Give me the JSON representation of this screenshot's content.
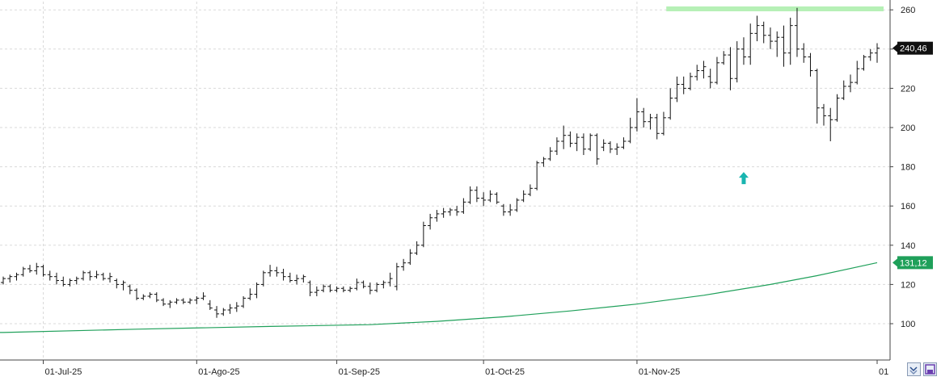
{
  "chart_data": {
    "type": "ohlc",
    "y_axis": {
      "side": "right",
      "range": [
        90,
        265
      ],
      "ticks": [
        100,
        120,
        140,
        160,
        180,
        200,
        220,
        240,
        260
      ]
    },
    "x_axis": {
      "labels": [
        "01-Jul-25",
        "01-Ago-25",
        "01-Sep-25",
        "01-Oct-25",
        "01-Nov-25",
        "01"
      ]
    },
    "grid": true,
    "last_price": {
      "label": "240,46",
      "value": 240.46,
      "color": "#111111"
    },
    "moving_average_value": {
      "label": "131,12",
      "value": 131.12,
      "color": "#1fa05a"
    },
    "resistance_band": {
      "value": 260.5,
      "from_date": "2025-11-10",
      "color": "#b6f0b6"
    },
    "signal_arrow": {
      "direction": "up",
      "date": "2025-11-25",
      "value": 174,
      "color": "#19b5b0"
    },
    "series": [
      {
        "type": "ohlc",
        "color": "#111111",
        "points": [
          [
            "2025-06-23",
            121,
            124,
            120,
            123
          ],
          [
            "2025-06-24",
            123,
            125,
            121,
            124
          ],
          [
            "2025-06-25",
            124,
            126,
            122,
            125
          ],
          [
            "2025-06-26",
            125,
            129,
            124,
            128
          ],
          [
            "2025-06-27",
            128,
            130,
            126,
            127
          ],
          [
            "2025-06-30",
            127,
            131,
            125,
            129
          ],
          [
            "2025-07-01",
            129,
            130,
            124,
            125
          ],
          [
            "2025-07-02",
            125,
            127,
            122,
            124
          ],
          [
            "2025-07-03",
            124,
            126,
            120,
            122
          ],
          [
            "2025-07-04",
            122,
            124,
            119,
            120
          ],
          [
            "2025-07-07",
            120,
            123,
            119,
            122
          ],
          [
            "2025-07-08",
            122,
            124,
            120,
            123
          ],
          [
            "2025-07-09",
            123,
            127,
            122,
            126
          ],
          [
            "2025-07-10",
            126,
            127,
            122,
            124
          ],
          [
            "2025-07-11",
            124,
            127,
            123,
            125
          ],
          [
            "2025-07-14",
            125,
            126,
            122,
            123
          ],
          [
            "2025-07-15",
            123,
            126,
            121,
            124
          ],
          [
            "2025-07-16",
            122,
            123,
            118,
            120
          ],
          [
            "2025-07-17",
            120,
            122,
            117,
            121
          ],
          [
            "2025-07-18",
            119,
            120,
            115,
            117
          ],
          [
            "2025-07-21",
            117,
            118,
            112,
            113
          ],
          [
            "2025-07-22",
            113,
            115,
            112,
            114
          ],
          [
            "2025-07-23",
            114,
            116,
            113,
            115
          ],
          [
            "2025-07-24",
            115,
            116,
            111,
            112
          ],
          [
            "2025-07-25",
            112,
            113,
            109,
            110
          ],
          [
            "2025-07-28",
            110,
            112,
            108,
            111
          ],
          [
            "2025-07-29",
            111,
            113,
            110,
            112
          ],
          [
            "2025-07-30",
            112,
            113,
            110,
            111
          ],
          [
            "2025-07-31",
            111,
            113,
            110,
            112
          ],
          [
            "2025-08-01",
            112,
            114,
            110,
            113
          ],
          [
            "2025-08-04",
            113,
            116,
            112,
            114
          ],
          [
            "2025-08-05",
            110,
            112,
            107,
            108
          ],
          [
            "2025-08-06",
            107,
            109,
            103,
            105
          ],
          [
            "2025-08-07",
            105,
            108,
            104,
            107
          ],
          [
            "2025-08-08",
            107,
            110,
            105,
            108
          ],
          [
            "2025-08-11",
            108,
            111,
            106,
            109
          ],
          [
            "2025-08-12",
            109,
            114,
            108,
            113
          ],
          [
            "2025-08-13",
            113,
            118,
            112,
            115
          ],
          [
            "2025-08-14",
            115,
            121,
            113,
            120
          ],
          [
            "2025-08-15",
            120,
            127,
            119,
            126
          ],
          [
            "2025-08-18",
            126,
            130,
            124,
            127
          ],
          [
            "2025-08-19",
            127,
            129,
            124,
            126
          ],
          [
            "2025-08-20",
            126,
            128,
            122,
            124
          ],
          [
            "2025-08-21",
            124,
            126,
            121,
            122
          ],
          [
            "2025-08-22",
            122,
            125,
            120,
            123
          ],
          [
            "2025-08-25",
            123,
            125,
            121,
            124
          ],
          [
            "2025-08-26",
            121,
            122,
            114,
            116
          ],
          [
            "2025-08-27",
            116,
            119,
            114,
            117
          ],
          [
            "2025-08-28",
            117,
            120,
            116,
            119
          ],
          [
            "2025-08-29",
            119,
            120,
            116,
            117
          ],
          [
            "2025-09-01",
            117,
            119,
            116,
            118
          ],
          [
            "2025-09-02",
            118,
            119,
            116,
            117
          ],
          [
            "2025-09-03",
            117,
            119,
            116,
            118
          ],
          [
            "2025-09-04",
            118,
            123,
            117,
            121
          ],
          [
            "2025-09-05",
            121,
            122,
            118,
            119
          ],
          [
            "2025-09-08",
            119,
            121,
            115,
            117
          ],
          [
            "2025-09-09",
            117,
            121,
            116,
            120
          ],
          [
            "2025-09-10",
            120,
            122,
            118,
            121
          ],
          [
            "2025-09-11",
            121,
            126,
            119,
            123
          ],
          [
            "2025-09-12",
            119,
            131,
            117,
            129
          ],
          [
            "2025-09-15",
            129,
            133,
            127,
            131
          ],
          [
            "2025-09-16",
            131,
            138,
            130,
            136
          ],
          [
            "2025-09-17",
            136,
            142,
            135,
            140
          ],
          [
            "2025-09-18",
            140,
            152,
            139,
            150
          ],
          [
            "2025-09-19",
            150,
            156,
            148,
            154
          ],
          [
            "2025-09-22",
            154,
            158,
            152,
            156
          ],
          [
            "2025-09-23",
            156,
            159,
            154,
            157
          ],
          [
            "2025-09-24",
            157,
            159,
            155,
            158
          ],
          [
            "2025-09-25",
            158,
            160,
            155,
            157
          ],
          [
            "2025-09-26",
            157,
            164,
            156,
            162
          ],
          [
            "2025-09-29",
            162,
            170,
            161,
            168
          ],
          [
            "2025-09-30",
            168,
            170,
            162,
            164
          ],
          [
            "2025-10-01",
            164,
            167,
            160,
            163
          ],
          [
            "2025-10-02",
            163,
            168,
            162,
            166
          ],
          [
            "2025-10-03",
            166,
            167,
            161,
            162
          ],
          [
            "2025-10-06",
            160,
            161,
            155,
            157
          ],
          [
            "2025-10-07",
            157,
            161,
            155,
            158
          ],
          [
            "2025-10-08",
            158,
            164,
            157,
            163
          ],
          [
            "2025-10-09",
            163,
            168,
            162,
            166
          ],
          [
            "2025-10-10",
            166,
            171,
            165,
            169
          ],
          [
            "2025-10-13",
            169,
            183,
            168,
            182
          ],
          [
            "2025-10-14",
            182,
            185,
            180,
            184
          ],
          [
            "2025-10-15",
            184,
            190,
            183,
            188
          ],
          [
            "2025-10-16",
            188,
            195,
            186,
            193
          ],
          [
            "2025-10-17",
            193,
            201,
            189,
            196
          ],
          [
            "2025-10-20",
            196,
            198,
            190,
            192
          ],
          [
            "2025-10-21",
            192,
            197,
            188,
            195
          ],
          [
            "2025-10-22",
            195,
            197,
            186,
            189
          ],
          [
            "2025-10-23",
            189,
            197,
            188,
            196
          ],
          [
            "2025-10-24",
            196,
            197,
            181,
            184
          ],
          [
            "2025-10-27",
            190,
            194,
            188,
            192
          ],
          [
            "2025-10-28",
            192,
            193,
            187,
            189
          ],
          [
            "2025-10-29",
            189,
            192,
            186,
            190
          ],
          [
            "2025-10-30",
            190,
            195,
            189,
            193
          ],
          [
            "2025-10-31",
            193,
            205,
            192,
            200
          ],
          [
            "2025-11-03",
            200,
            215,
            198,
            208
          ],
          [
            "2025-11-04",
            208,
            210,
            200,
            203
          ],
          [
            "2025-11-05",
            203,
            207,
            199,
            205
          ],
          [
            "2025-11-06",
            205,
            207,
            194,
            197
          ],
          [
            "2025-11-07",
            197,
            208,
            196,
            205
          ],
          [
            "2025-11-10",
            205,
            220,
            204,
            215
          ],
          [
            "2025-11-11",
            215,
            226,
            213,
            222
          ],
          [
            "2025-11-12",
            222,
            226,
            217,
            220
          ],
          [
            "2025-11-13",
            220,
            228,
            219,
            226
          ],
          [
            "2025-11-14",
            226,
            232,
            224,
            229
          ],
          [
            "2025-11-17",
            229,
            234,
            225,
            231
          ],
          [
            "2025-11-18",
            226,
            230,
            220,
            223
          ],
          [
            "2025-11-19",
            223,
            236,
            222,
            233
          ],
          [
            "2025-11-20",
            233,
            239,
            232,
            237
          ],
          [
            "2025-11-21",
            237,
            241,
            219,
            225
          ],
          [
            "2025-11-24",
            225,
            244,
            223,
            240
          ],
          [
            "2025-11-25",
            240,
            246,
            232,
            236
          ],
          [
            "2025-11-26",
            236,
            253,
            232,
            248
          ],
          [
            "2025-11-27",
            248,
            257,
            244,
            252
          ],
          [
            "2025-11-28",
            252,
            254,
            243,
            247
          ],
          [
            "2025-12-01",
            247,
            251,
            240,
            244
          ],
          [
            "2025-12-02",
            244,
            249,
            236,
            246
          ],
          [
            "2025-12-03",
            246,
            252,
            231,
            238
          ],
          [
            "2025-12-04",
            238,
            256,
            232,
            252
          ],
          [
            "2025-12-05",
            252,
            261,
            236,
            240
          ],
          [
            "2025-12-08",
            240,
            243,
            233,
            236
          ],
          [
            "2025-12-09",
            236,
            238,
            226,
            229
          ],
          [
            "2025-12-10",
            229,
            230,
            202,
            210
          ],
          [
            "2025-12-11",
            210,
            212,
            201,
            206
          ],
          [
            "2025-12-12",
            206,
            210,
            193,
            204
          ],
          [
            "2025-12-15",
            204,
            217,
            203,
            215
          ],
          [
            "2025-12-16",
            215,
            224,
            214,
            221
          ],
          [
            "2025-12-17",
            221,
            227,
            218,
            223
          ],
          [
            "2025-12-18",
            223,
            234,
            222,
            230
          ],
          [
            "2025-12-19",
            230,
            237,
            229,
            236
          ],
          [
            "2025-12-22",
            236,
            240,
            234,
            238
          ],
          [
            "2025-12-23",
            238,
            243,
            233,
            240.46
          ]
        ]
      },
      {
        "type": "line",
        "color": "#1fa05a",
        "points": [
          [
            "2025-06-23",
            95.5
          ],
          [
            "2025-07-21",
            97.2
          ],
          [
            "2025-08-18",
            98.6
          ],
          [
            "2025-09-08",
            99.5
          ],
          [
            "2025-09-22",
            101.2
          ],
          [
            "2025-10-06",
            103.5
          ],
          [
            "2025-10-20",
            106.5
          ],
          [
            "2025-11-03",
            110.0
          ],
          [
            "2025-11-17",
            114.5
          ],
          [
            "2025-12-01",
            120.0
          ],
          [
            "2025-12-10",
            124.5
          ],
          [
            "2025-12-23",
            131.12
          ]
        ]
      }
    ]
  }
}
